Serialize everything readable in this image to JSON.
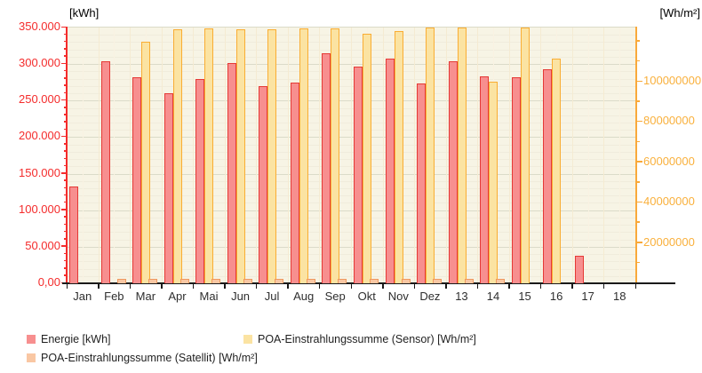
{
  "chart_data": {
    "type": "bar",
    "title": "",
    "categories": [
      "Jan",
      "Feb",
      "Mar",
      "Apr",
      "Mai",
      "Jun",
      "Jul",
      "Aug",
      "Sep",
      "Okt",
      "Nov",
      "Dez",
      "13",
      "14",
      "15",
      "16",
      "17",
      "18"
    ],
    "series": [
      {
        "name": "Energie [kWh]",
        "axis": "left",
        "color": "#f78f8f",
        "border": "#e53935",
        "values": [
          132000,
          304000,
          282000,
          260000,
          279000,
          301000,
          270000,
          275000,
          315000,
          296000,
          308000,
          273000,
          304000,
          283000,
          282000,
          293000,
          38000,
          null
        ]
      },
      {
        "name": "POA-Einstrahlungssumme (Sensor) [Wh/m²]",
        "axis": "right",
        "color": "#fbe3a2",
        "border": "#f9ad33",
        "values": [
          null,
          null,
          120000000,
          126000000,
          126500000,
          126000000,
          126000000,
          126500000,
          126500000,
          124000000,
          125000000,
          127000000,
          127000000,
          100000000,
          127000000,
          111500000,
          null,
          null
        ]
      },
      {
        "name": "POA-Einstrahlungssumme (Satellit) [Wh/m²]",
        "axis": "right",
        "color": "#f9c7a3",
        "border": "#ef9960",
        "values": [
          null,
          2000000,
          2000000,
          2000000,
          2000000,
          2000000,
          2000000,
          2000000,
          2000000,
          2000000,
          2000000,
          2000000,
          2000000,
          2000000,
          null,
          null,
          null,
          null
        ]
      }
    ],
    "left_axis": {
      "title": "[kWh]",
      "min": 0,
      "max": 350000,
      "tick_step": 50000,
      "minor_step": 10000,
      "tick_labels": [
        "0,00",
        "50.000",
        "100.000",
        "150.000",
        "200.000",
        "250.000",
        "300.000",
        "350.000"
      ],
      "color": "#f42c2c"
    },
    "right_axis": {
      "title": "[Wh/m²]",
      "min": 0,
      "max": 126900000,
      "tick_step": 20000000,
      "minor_step": 10000000,
      "tick_labels": [
        "20000000",
        "40000000",
        "60000000",
        "80000000",
        "100000000"
      ],
      "color": "#f9a93a",
      "label_color": "#f9b03c"
    },
    "x_axis": {
      "labels": [
        "Jan",
        "Feb",
        "Mar",
        "Apr",
        "Mai",
        "Jun",
        "Jul",
        "Aug",
        "Sep",
        "Okt",
        "Nov",
        "Dez",
        "13",
        "14",
        "15",
        "16",
        "17",
        "18"
      ],
      "color": "#2e2e2e"
    },
    "grid": true,
    "legend_position": "bottom"
  },
  "legend": {
    "items": [
      {
        "label": "Energie [kWh]",
        "color": "#f78f8f"
      },
      {
        "label": "POA-Einstrahlungssumme (Satellit) [Wh/m²]",
        "color": "#f9c7a3"
      },
      {
        "label": "POA-Einstrahlungssumme (Sensor) [Wh/m²]",
        "color": "#fbe3a2"
      }
    ]
  }
}
